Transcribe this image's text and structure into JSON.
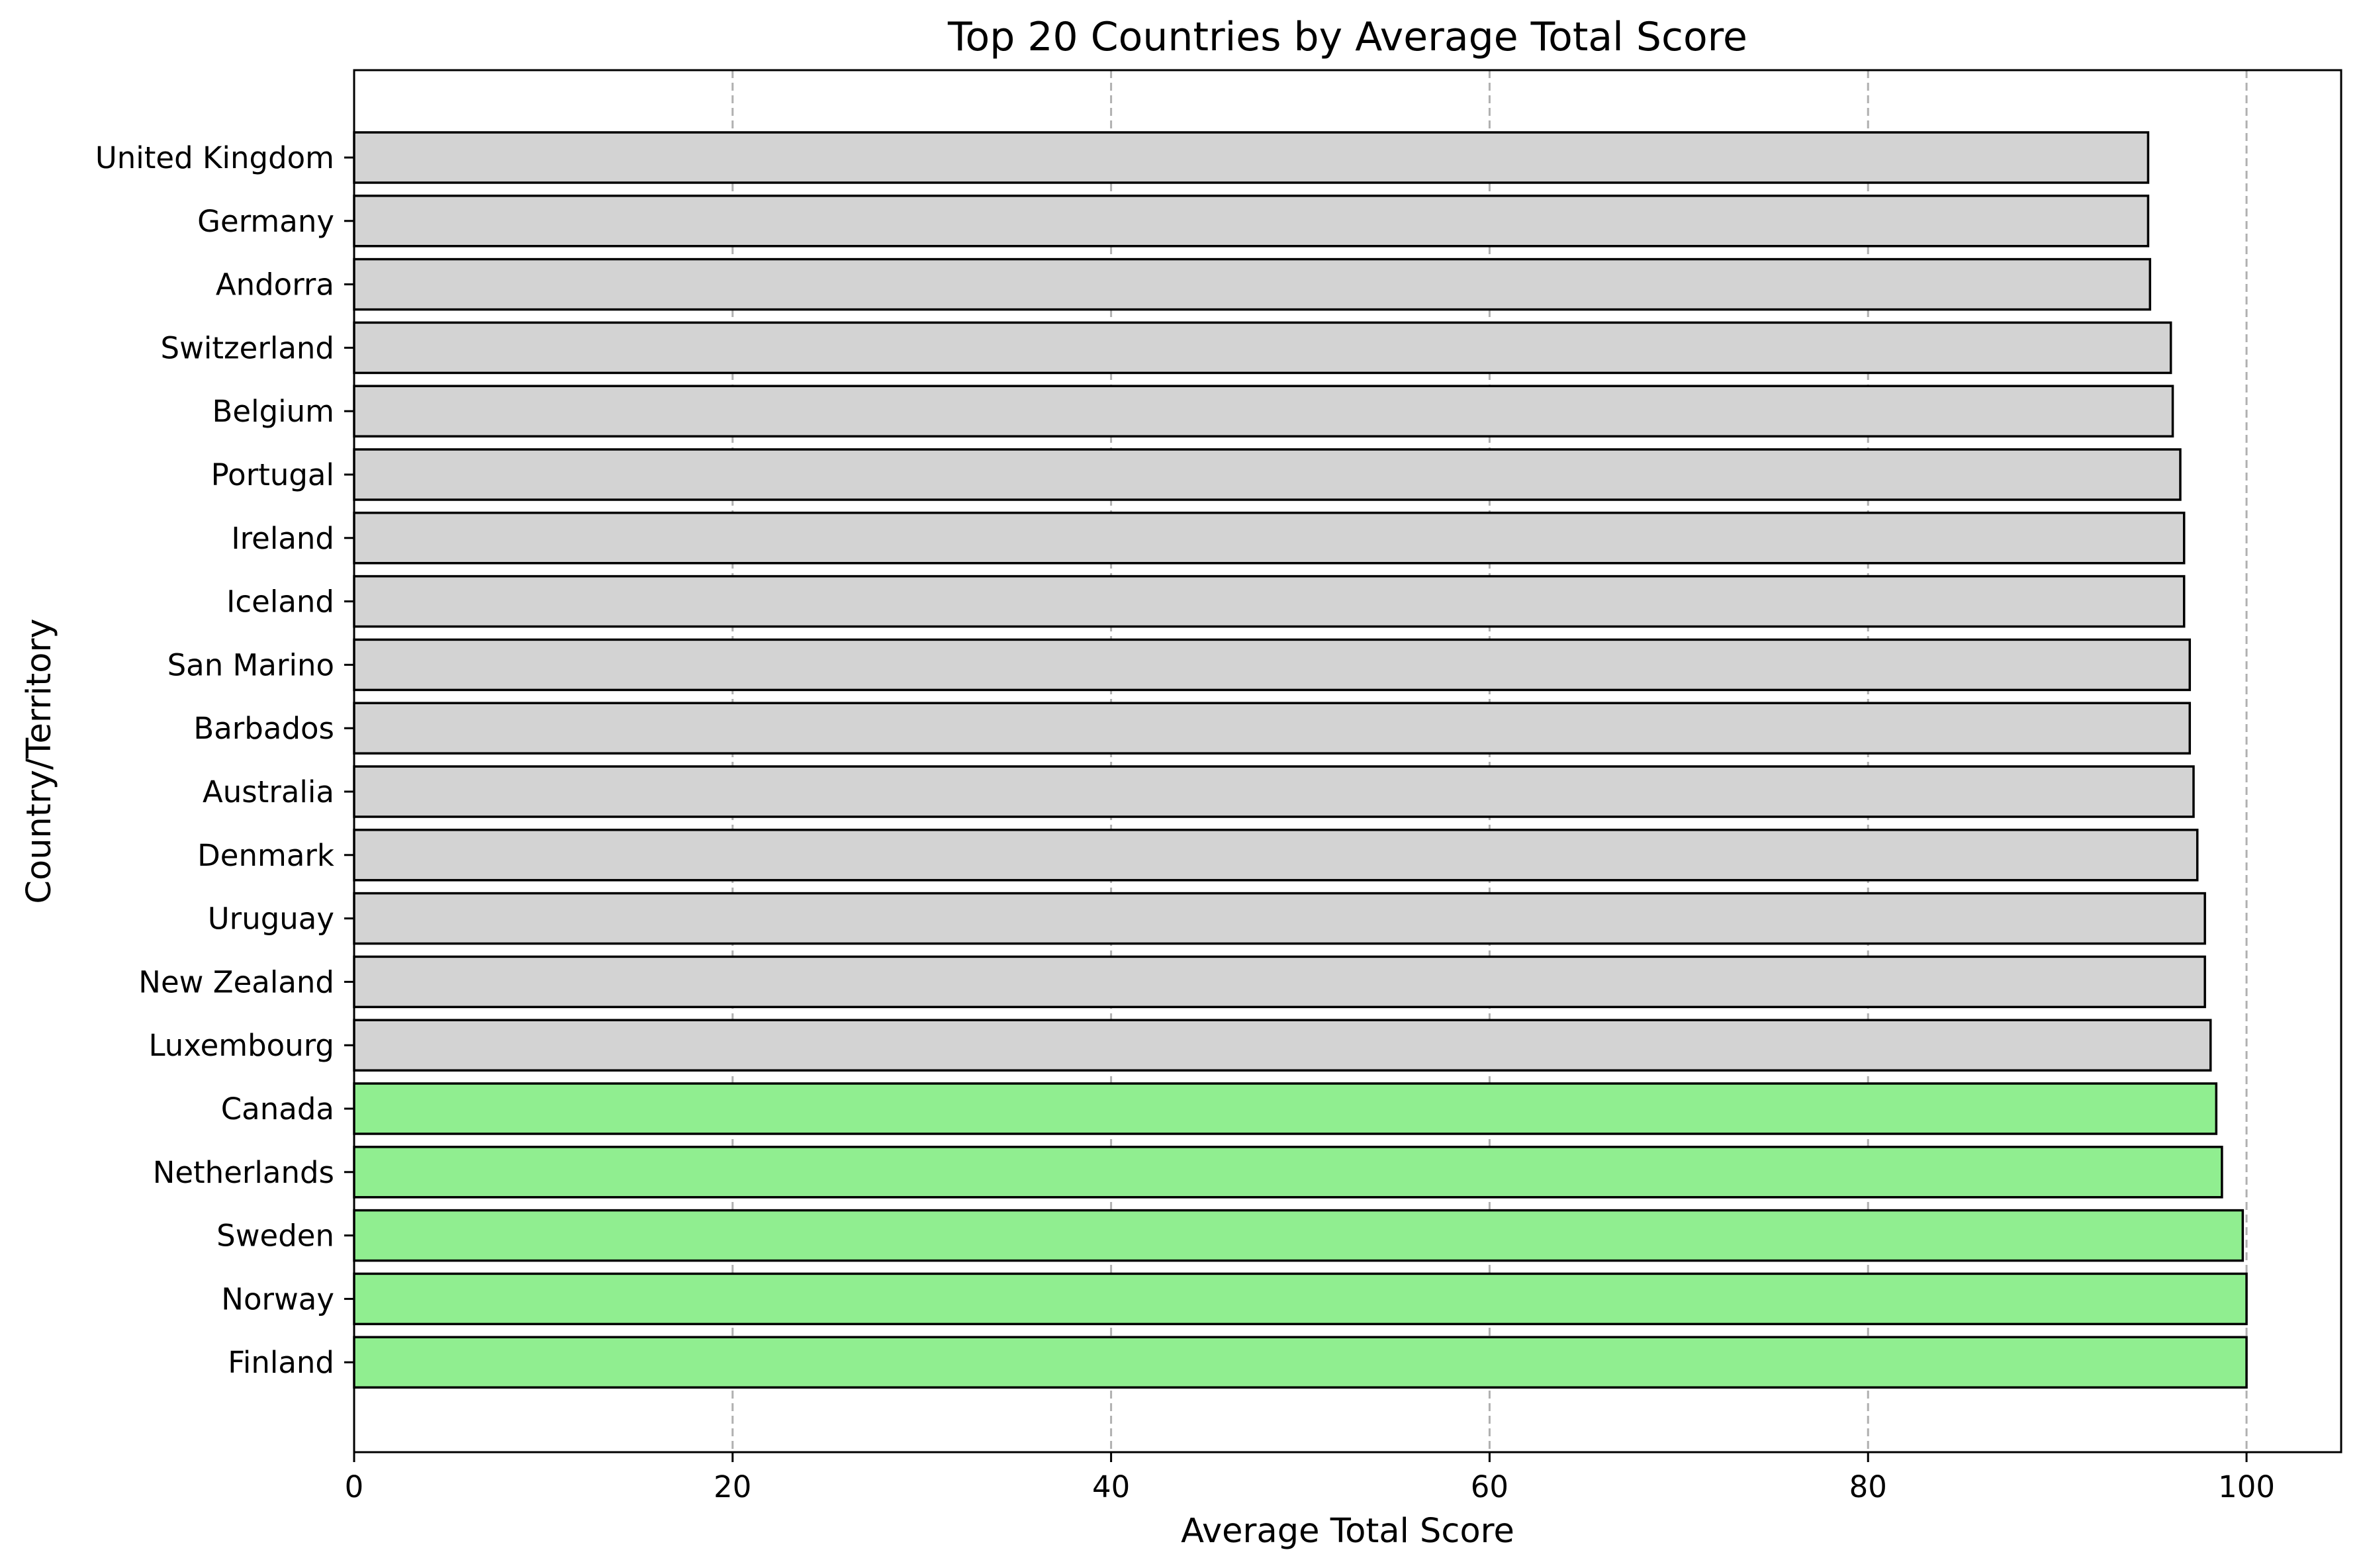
{
  "chart_data": {
    "type": "bar",
    "orientation": "horizontal",
    "title": "Top 20 Countries by Average Total Score",
    "xlabel": "Average Total Score",
    "ylabel": "Country/Territory",
    "xlim": [
      0,
      105
    ],
    "xticks": [
      0,
      20,
      40,
      60,
      80,
      100
    ],
    "grid": "x-axis dashed",
    "categories": [
      "United Kingdom",
      "Germany",
      "Andorra",
      "Switzerland",
      "Belgium",
      "Portugal",
      "Ireland",
      "Iceland",
      "San Marino",
      "Barbados",
      "Australia",
      "Denmark",
      "Uruguay",
      "New Zealand",
      "Luxembourg",
      "Canada",
      "Netherlands",
      "Sweden",
      "Norway",
      "Finland"
    ],
    "values": [
      94.8,
      94.8,
      94.9,
      96.0,
      96.1,
      96.5,
      96.7,
      96.7,
      97.0,
      97.0,
      97.2,
      97.4,
      97.8,
      97.8,
      98.1,
      98.4,
      98.7,
      99.8,
      100.0,
      100.0
    ],
    "highlight_top_n": 5,
    "colors": {
      "highlight": "#90ee90",
      "default": "#d3d3d3",
      "edge": "#000000"
    }
  }
}
